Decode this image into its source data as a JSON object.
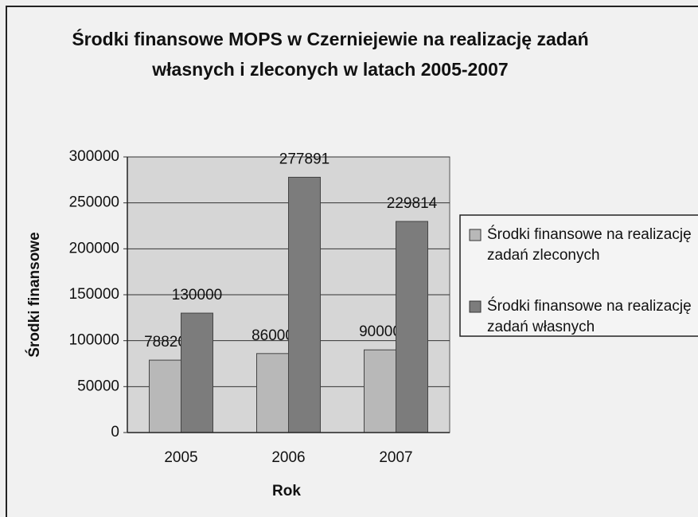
{
  "chart_data": {
    "type": "bar",
    "title": "Środki finansowe MOPS w Czerniejewie na realizację zadań własnych i zleconych w latach 2005-2007",
    "x_label": "Rok",
    "y_label": "Środki finansowe",
    "categories": [
      "2005",
      "2006",
      "2007"
    ],
    "series": [
      {
        "name": "Środki finansowe na realizację zadań zleconych",
        "color": "#b8b8b8",
        "values": [
          78820,
          86000,
          90000
        ]
      },
      {
        "name": "Środki finansowe na realizację zadań własnych",
        "color": "#7c7c7c",
        "values": [
          130000,
          277891,
          229814
        ]
      }
    ],
    "ylim": [
      0,
      300000
    ],
    "yticks": [
      0,
      50000,
      100000,
      150000,
      200000,
      250000,
      300000
    ],
    "grid": true,
    "legend": "right"
  }
}
